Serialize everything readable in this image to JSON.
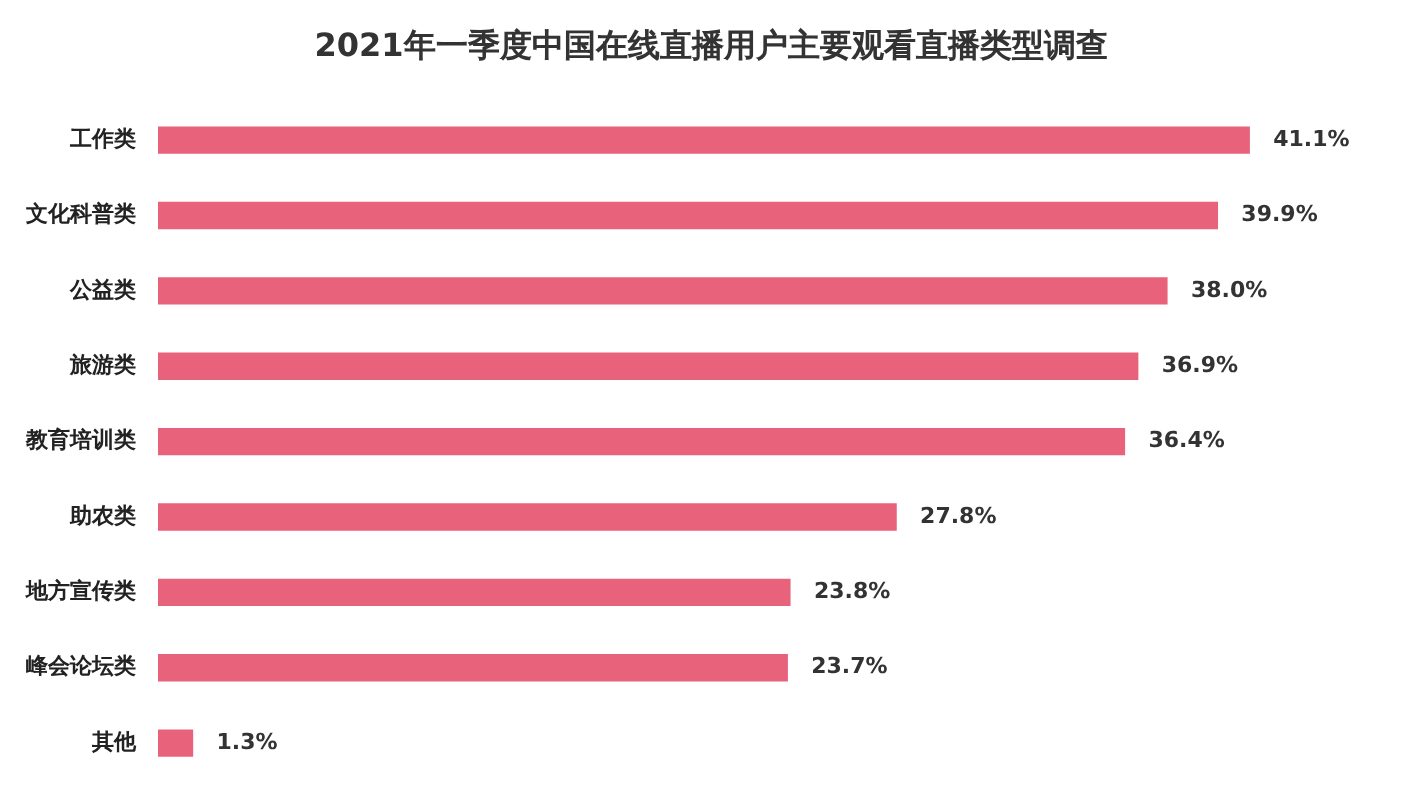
{
  "chart_data": {
    "type": "bar",
    "orientation": "horizontal",
    "title": "2021年一季度中国在线直播用户主要观看直播类型调查",
    "categories": [
      "工作类",
      "文化科普类",
      "公益类",
      "旅游类",
      "教育培训类",
      "助农类",
      "地方宣传类",
      "峰会论坛类",
      "其他"
    ],
    "values": [
      41.1,
      39.9,
      38.0,
      36.9,
      36.4,
      27.8,
      23.8,
      23.7,
      1.3
    ],
    "value_labels": [
      "41.1%",
      "39.9%",
      "38.0%",
      "36.9%",
      "36.4%",
      "27.8%",
      "23.8%",
      "23.7%",
      "1.3%"
    ],
    "color": "#e8627c",
    "grid": false,
    "legend": false
  }
}
